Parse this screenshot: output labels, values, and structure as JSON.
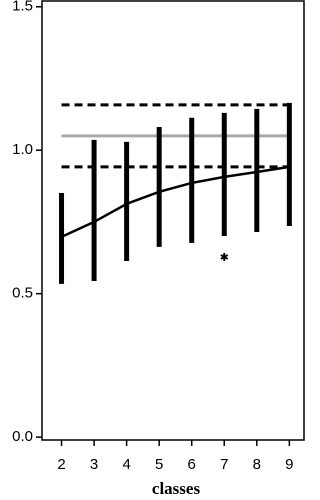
{
  "chart_data": {
    "type": "range",
    "x_label": "classes",
    "x": [
      2,
      3,
      4,
      5,
      6,
      7,
      8,
      9
    ],
    "low": [
      0.534,
      0.544,
      0.614,
      0.663,
      0.677,
      0.701,
      0.715,
      0.736
    ],
    "high": [
      0.851,
      1.036,
      1.029,
      1.081,
      1.113,
      1.13,
      1.144,
      1.165
    ],
    "mean": [
      0.698,
      0.75,
      0.813,
      0.855,
      0.886,
      0.907,
      0.924,
      0.942
    ],
    "range_color": "#000000",
    "mean_color": "#000000",
    "hlines": [
      {
        "value": 1.05,
        "color": "#aaaaaa",
        "style": "solid"
      },
      {
        "value": 1.158,
        "color": "#000000",
        "style": "dashed"
      },
      {
        "value": 0.942,
        "color": "#000000",
        "style": "dashed"
      }
    ],
    "points": [
      {
        "x": 7,
        "y": 0.628,
        "marker": "asterisk"
      }
    ],
    "xlim": [
      1.4,
      9.45
    ],
    "ylim": [
      -0.01,
      1.52
    ],
    "xticks": [
      2,
      3,
      4,
      5,
      6,
      7,
      8,
      9
    ],
    "yticks": [
      {
        "value": 0,
        "label": "0.0"
      },
      0.5,
      {
        "value": 1,
        "label": "1.0"
      },
      1.5
    ]
  }
}
